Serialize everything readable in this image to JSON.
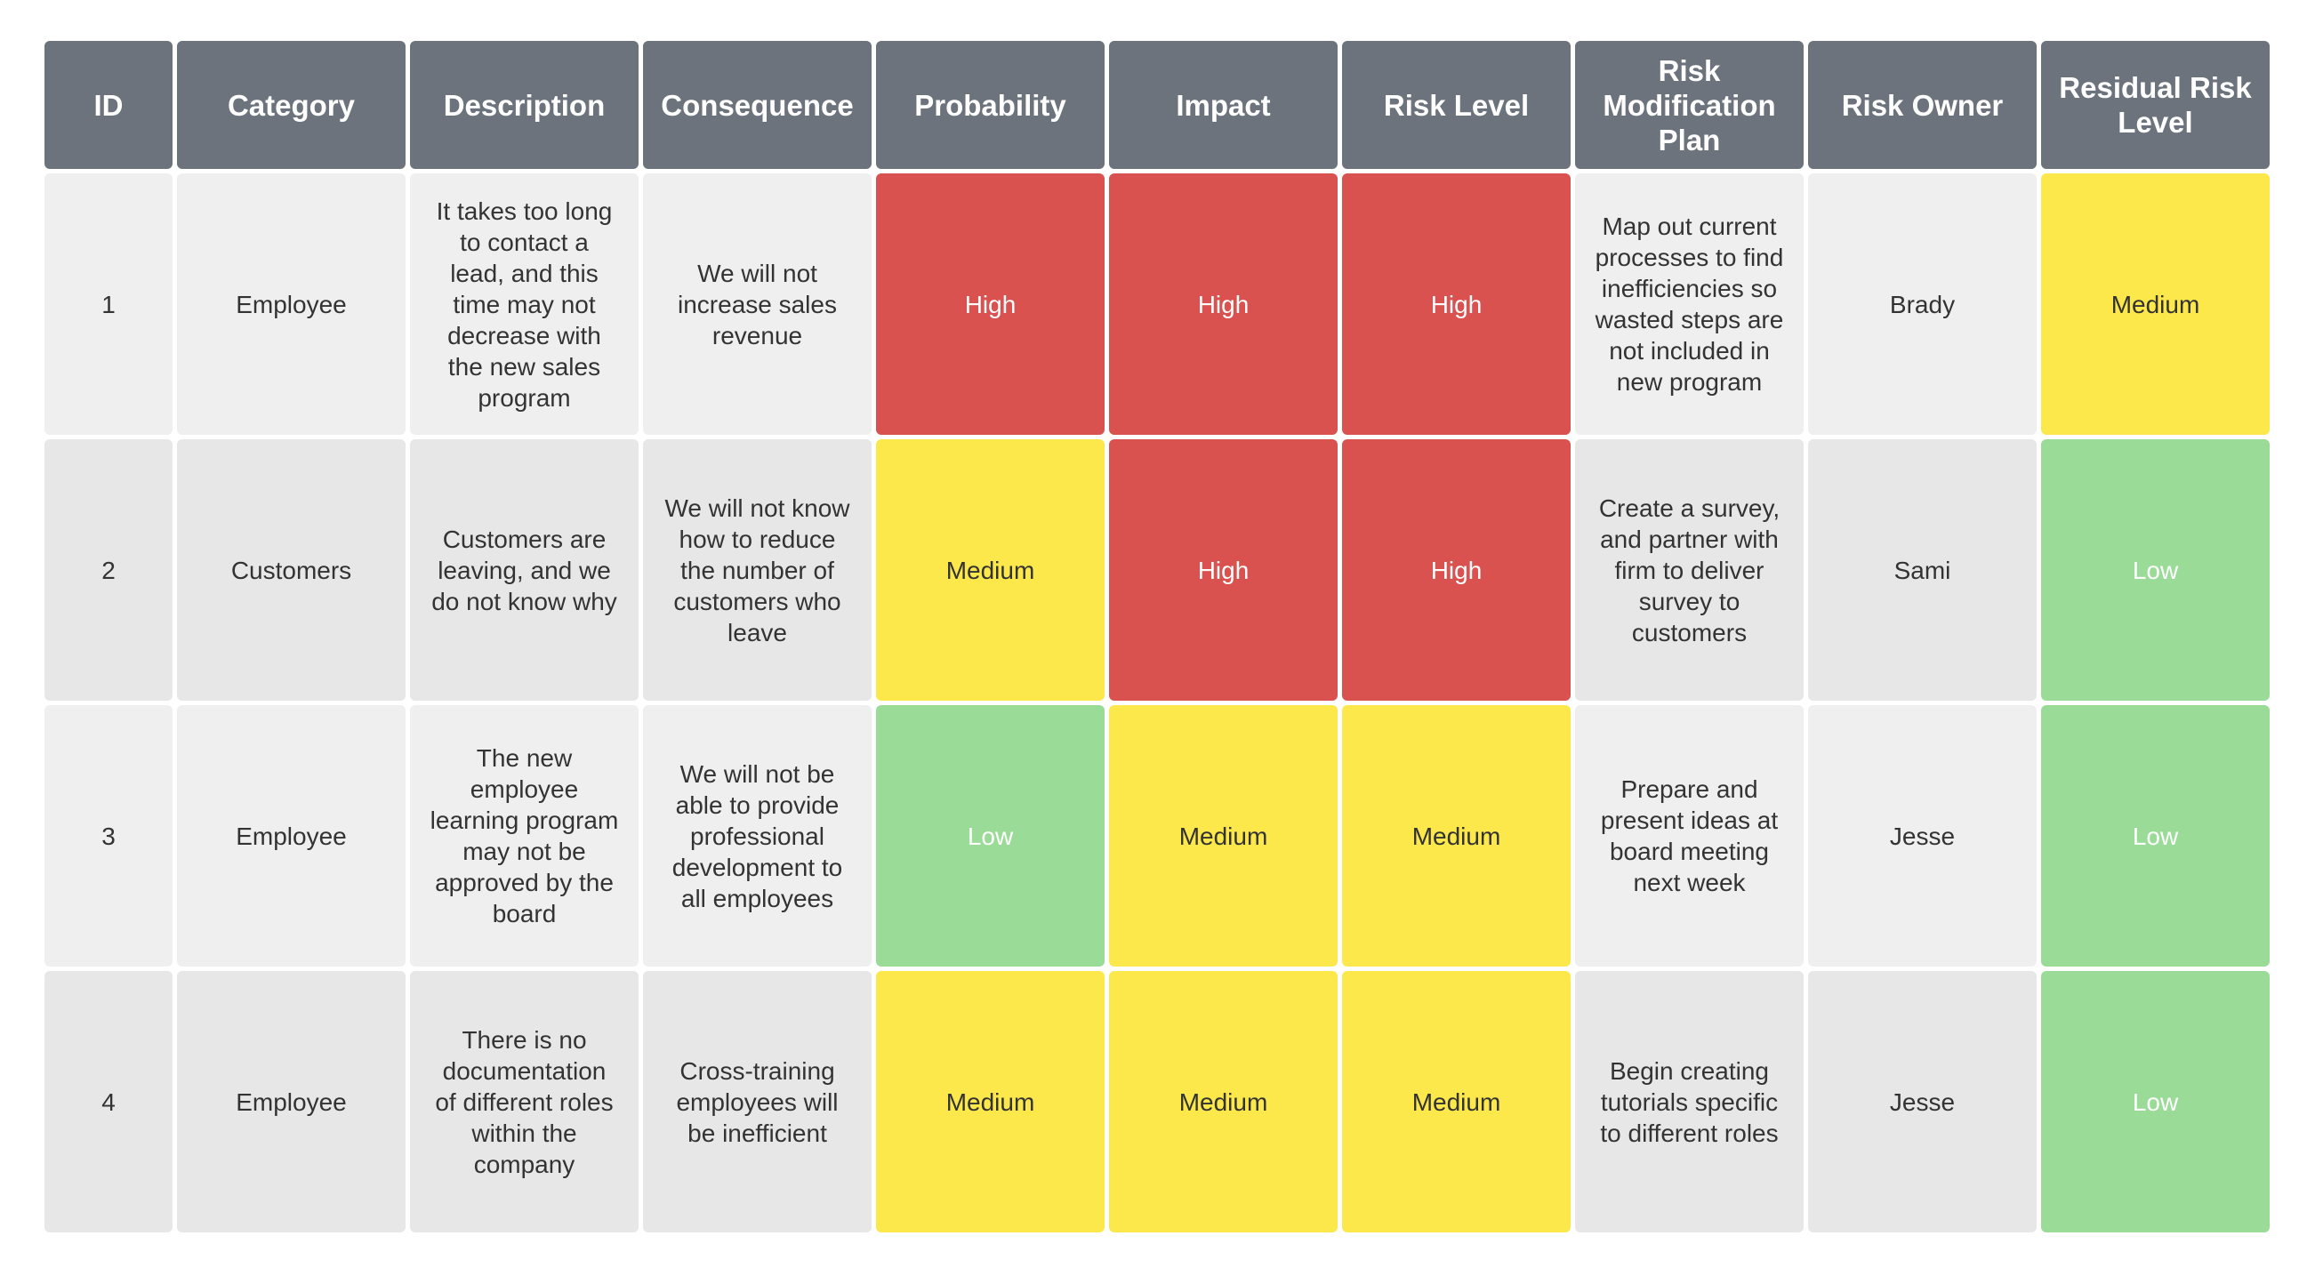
{
  "table": {
    "header": [
      "ID",
      "Category",
      "Description",
      "Consequence",
      "Probability",
      "Impact",
      "Risk Level",
      "Risk Modification Plan",
      "Risk Owner",
      "Residual Risk Level"
    ],
    "rows": [
      [
        "1",
        "Employee",
        "It takes too long to contact a lead, and this time may not decrease with the new sales program",
        "We will not increase sales revenue",
        "High",
        "High",
        "High",
        "Map out current processes to find inefficiencies so wasted steps are not included in new program",
        "Brady",
        "Medium"
      ],
      [
        "2",
        "Customers",
        "Customers are leaving, and we do not know why",
        "We will not know how to reduce the number of customers who leave",
        "Medium",
        "High",
        "High",
        "Create a survey, and partner with firm to deliver survey to customers",
        "Sami",
        "Low"
      ],
      [
        "3",
        "Employee",
        "The new employee learning program may not be approved by the board",
        "We will not be able to provide professional development to all employees",
        "Low",
        "Medium",
        "Medium",
        "Prepare and present ideas at board meeting next week",
        "Jesse",
        "Low"
      ],
      [
        "4",
        "Employee",
        "There is no documentation of different roles within the company",
        "Cross-training employees will be inefficient",
        "Medium",
        "Medium",
        "Medium",
        "Begin creating tutorials specific to different roles",
        "Jesse",
        "Low"
      ]
    ]
  }
}
